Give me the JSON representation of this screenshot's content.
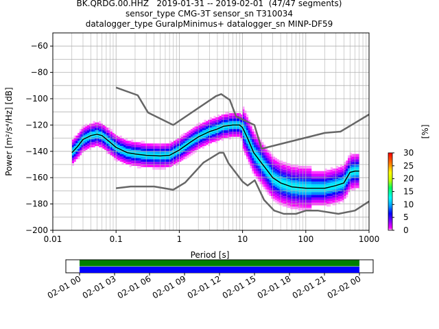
{
  "title_lines": [
    "BK.QRDG.00.HHZ   2019-01-31 -- 2019-02-01  (47/47 segments)",
    "sensor_type CMG-3T sensor_sn T310034",
    "datalogger_type GuralpMinimus+ datalogger_sn MINP-DF59"
  ],
  "chart_data": [
    {
      "type": "heatmap",
      "title": "BK.QRDG.00.HHZ   2019-01-31 -- 2019-02-01  (47/47 segments)",
      "xlabel": "Period [s]",
      "ylabel": "Power [m²/s⁴/Hz] [dB]",
      "xscale": "log",
      "xlim": [
        0.01,
        1000
      ],
      "ylim": [
        -200,
        -50
      ],
      "xticks": [
        "0.01",
        "0.1",
        "1",
        "10",
        "100",
        "1000"
      ],
      "yticks": [
        "−60",
        "−80",
        "−100",
        "−120",
        "−140",
        "−160",
        "−180",
        "−200"
      ],
      "grid": true,
      "colorbar": {
        "label": "[%]",
        "range": [
          0,
          30
        ],
        "ticks": [
          "0",
          "5",
          "10",
          "15",
          "20",
          "25",
          "30"
        ],
        "colormap": "pqlx"
      },
      "series": [
        {
          "role": "nhnm",
          "color": "#666666",
          "points": [
            [
              0.1,
              -91.5
            ],
            [
              0.22,
              -97.4
            ],
            [
              0.32,
              -110.5
            ],
            [
              0.8,
              -120
            ],
            [
              3.8,
              -98
            ],
            [
              4.6,
              -96.5
            ],
            [
              6.3,
              -101
            ],
            [
              7.9,
              -113.5
            ],
            [
              15.4,
              -120
            ],
            [
              20,
              -138
            ],
            [
              200,
              -126
            ],
            [
              354,
              -125
            ],
            [
              1000,
              -112
            ]
          ]
        },
        {
          "role": "nlnm",
          "color": "#666666",
          "points": [
            [
              0.1,
              -168
            ],
            [
              0.17,
              -166.7
            ],
            [
              0.4,
              -166.7
            ],
            [
              0.8,
              -169.2
            ],
            [
              1.24,
              -163.7
            ],
            [
              2.4,
              -148.6
            ],
            [
              4.3,
              -141.1
            ],
            [
              5,
              -141.1
            ],
            [
              6,
              -149
            ],
            [
              10,
              -163
            ],
            [
              12,
              -166
            ],
            [
              15.6,
              -162
            ],
            [
              21.9,
              -177
            ],
            [
              31.6,
              -185
            ],
            [
              45,
              -187.5
            ],
            [
              70,
              -187.5
            ],
            [
              101,
              -185
            ],
            [
              154,
              -185
            ],
            [
              328,
              -187.5
            ],
            [
              600,
              -185
            ],
            [
              1000,
              -178
            ]
          ]
        },
        {
          "role": "mode",
          "color": "#000000",
          "points": [
            [
              0.02,
              -141
            ],
            [
              0.025,
              -136
            ],
            [
              0.03,
              -131
            ],
            [
              0.04,
              -128
            ],
            [
              0.05,
              -127
            ],
            [
              0.06,
              -128
            ],
            [
              0.08,
              -133
            ],
            [
              0.1,
              -137
            ],
            [
              0.15,
              -141
            ],
            [
              0.2,
              -142
            ],
            [
              0.3,
              -143
            ],
            [
              0.5,
              -143.5
            ],
            [
              0.7,
              -143
            ],
            [
              1,
              -139
            ],
            [
              1.5,
              -133
            ],
            [
              2,
              -129
            ],
            [
              3,
              -125
            ],
            [
              4,
              -123
            ],
            [
              5,
              -121
            ],
            [
              7,
              -120
            ],
            [
              9,
              -120
            ],
            [
              10,
              -122
            ],
            [
              12,
              -130
            ],
            [
              15,
              -141
            ],
            [
              20,
              -149
            ],
            [
              25,
              -155
            ],
            [
              30,
              -160
            ],
            [
              40,
              -164
            ],
            [
              60,
              -167
            ],
            [
              100,
              -168
            ],
            [
              200,
              -168
            ],
            [
              300,
              -166
            ],
            [
              400,
              -164
            ],
            [
              500,
              -156
            ],
            [
              600,
              -155
            ],
            [
              700,
              -155
            ]
          ]
        }
      ]
    },
    {
      "type": "timeline",
      "ticks": [
        "02-01 00",
        "02-01 03",
        "02-01 06",
        "02-01 09",
        "02-01 12",
        "02-01 15",
        "02-01 18",
        "02-01 21",
        "02-02 00"
      ],
      "bars": [
        {
          "role": "upper",
          "color": "#008000"
        },
        {
          "role": "lower",
          "color": "#0000ff"
        }
      ]
    }
  ]
}
